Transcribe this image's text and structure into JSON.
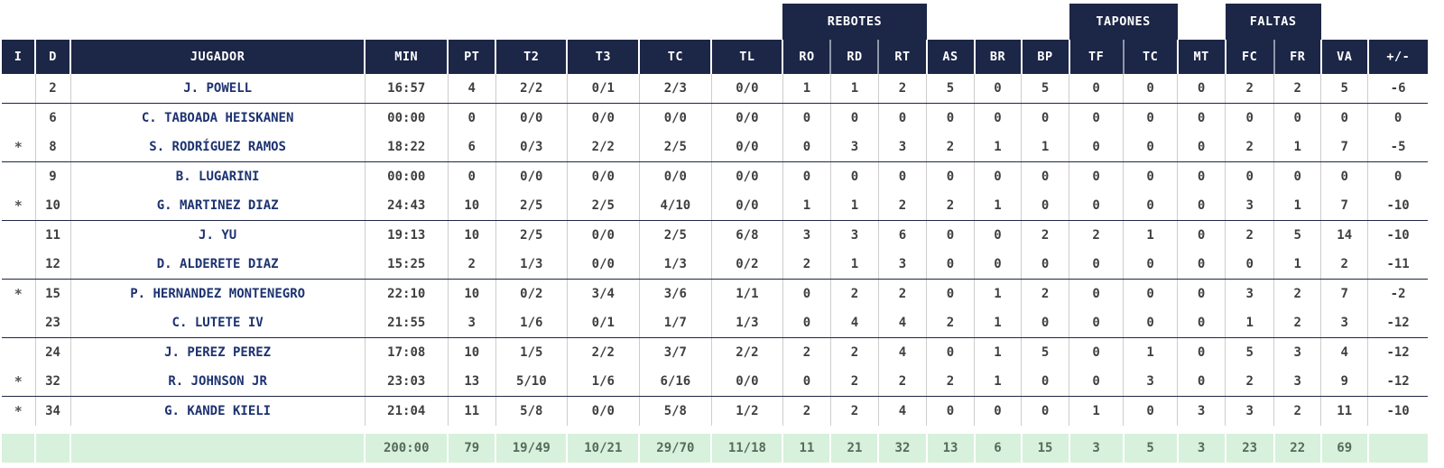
{
  "table": {
    "groups": {
      "rebotes": "REBOTES",
      "tapones": "TAPONES",
      "faltas": "FALTAS"
    },
    "columns": [
      "I",
      "D",
      "JUGADOR",
      "MIN",
      "PT",
      "T2",
      "T3",
      "TC",
      "TL",
      "RO",
      "RD",
      "RT",
      "AS",
      "BR",
      "BP",
      "TF",
      "TC",
      "MT",
      "FC",
      "FR",
      "VA",
      "+/-"
    ],
    "rows": [
      [
        "",
        "2",
        "J. POWELL",
        "16:57",
        "4",
        "2/2",
        "0/1",
        "2/3",
        "0/0",
        "1",
        "1",
        "2",
        "5",
        "0",
        "5",
        "0",
        "0",
        "0",
        "2",
        "2",
        "5",
        "-6"
      ],
      [
        "",
        "6",
        "C. TABOADA HEISKANEN",
        "00:00",
        "0",
        "0/0",
        "0/0",
        "0/0",
        "0/0",
        "0",
        "0",
        "0",
        "0",
        "0",
        "0",
        "0",
        "0",
        "0",
        "0",
        "0",
        "0",
        "0"
      ],
      [
        "*",
        "8",
        "S. RODRÍGUEZ RAMOS",
        "18:22",
        "6",
        "0/3",
        "2/2",
        "2/5",
        "0/0",
        "0",
        "3",
        "3",
        "2",
        "1",
        "1",
        "0",
        "0",
        "0",
        "2",
        "1",
        "7",
        "-5"
      ],
      [
        "",
        "9",
        "B. LUGARINI",
        "00:00",
        "0",
        "0/0",
        "0/0",
        "0/0",
        "0/0",
        "0",
        "0",
        "0",
        "0",
        "0",
        "0",
        "0",
        "0",
        "0",
        "0",
        "0",
        "0",
        "0"
      ],
      [
        "*",
        "10",
        "G. MARTINEZ DIAZ",
        "24:43",
        "10",
        "2/5",
        "2/5",
        "4/10",
        "0/0",
        "1",
        "1",
        "2",
        "2",
        "1",
        "0",
        "0",
        "0",
        "0",
        "3",
        "1",
        "7",
        "-10"
      ],
      [
        "",
        "11",
        "J. YU",
        "19:13",
        "10",
        "2/5",
        "0/0",
        "2/5",
        "6/8",
        "3",
        "3",
        "6",
        "0",
        "0",
        "2",
        "2",
        "1",
        "0",
        "2",
        "5",
        "14",
        "-10"
      ],
      [
        "",
        "12",
        "D. ALDERETE DIAZ",
        "15:25",
        "2",
        "1/3",
        "0/0",
        "1/3",
        "0/2",
        "2",
        "1",
        "3",
        "0",
        "0",
        "0",
        "0",
        "0",
        "0",
        "0",
        "1",
        "2",
        "-11"
      ],
      [
        "*",
        "15",
        "P. HERNANDEZ MONTENEGRO",
        "22:10",
        "10",
        "0/2",
        "3/4",
        "3/6",
        "1/1",
        "0",
        "2",
        "2",
        "0",
        "1",
        "2",
        "0",
        "0",
        "0",
        "3",
        "2",
        "7",
        "-2"
      ],
      [
        "",
        "23",
        "C. LUTETE IV",
        "21:55",
        "3",
        "1/6",
        "0/1",
        "1/7",
        "1/3",
        "0",
        "4",
        "4",
        "2",
        "1",
        "0",
        "0",
        "0",
        "0",
        "1",
        "2",
        "3",
        "-12"
      ],
      [
        "",
        "24",
        "J. PEREZ PEREZ",
        "17:08",
        "10",
        "1/5",
        "2/2",
        "3/7",
        "2/2",
        "2",
        "2",
        "4",
        "0",
        "1",
        "5",
        "0",
        "1",
        "0",
        "5",
        "3",
        "4",
        "-12"
      ],
      [
        "*",
        "32",
        "R. JOHNSON JR",
        "23:03",
        "13",
        "5/10",
        "1/6",
        "6/16",
        "0/0",
        "0",
        "2",
        "2",
        "2",
        "1",
        "0",
        "0",
        "3",
        "0",
        "2",
        "3",
        "9",
        "-12"
      ],
      [
        "*",
        "34",
        "G. KANDE KIELI",
        "21:04",
        "11",
        "5/8",
        "0/0",
        "5/8",
        "1/2",
        "2",
        "2",
        "4",
        "0",
        "0",
        "0",
        "1",
        "0",
        "3",
        "3",
        "2",
        "11",
        "-10"
      ]
    ],
    "totals": [
      "",
      "",
      "",
      "200:00",
      "79",
      "19/49",
      "10/21",
      "29/70",
      "11/18",
      "11",
      "21",
      "32",
      "13",
      "6",
      "15",
      "3",
      "5",
      "3",
      "23",
      "22",
      "69",
      ""
    ]
  },
  "colors": {
    "header_navy": "#1c2646",
    "player_name_blue": "#1d3270",
    "stat_text": "#3f3f3f",
    "totals_bg": "#d7f1dc",
    "totals_text": "#57695c",
    "row_separator": "#1c2646",
    "column_separator": "#cccccc"
  }
}
